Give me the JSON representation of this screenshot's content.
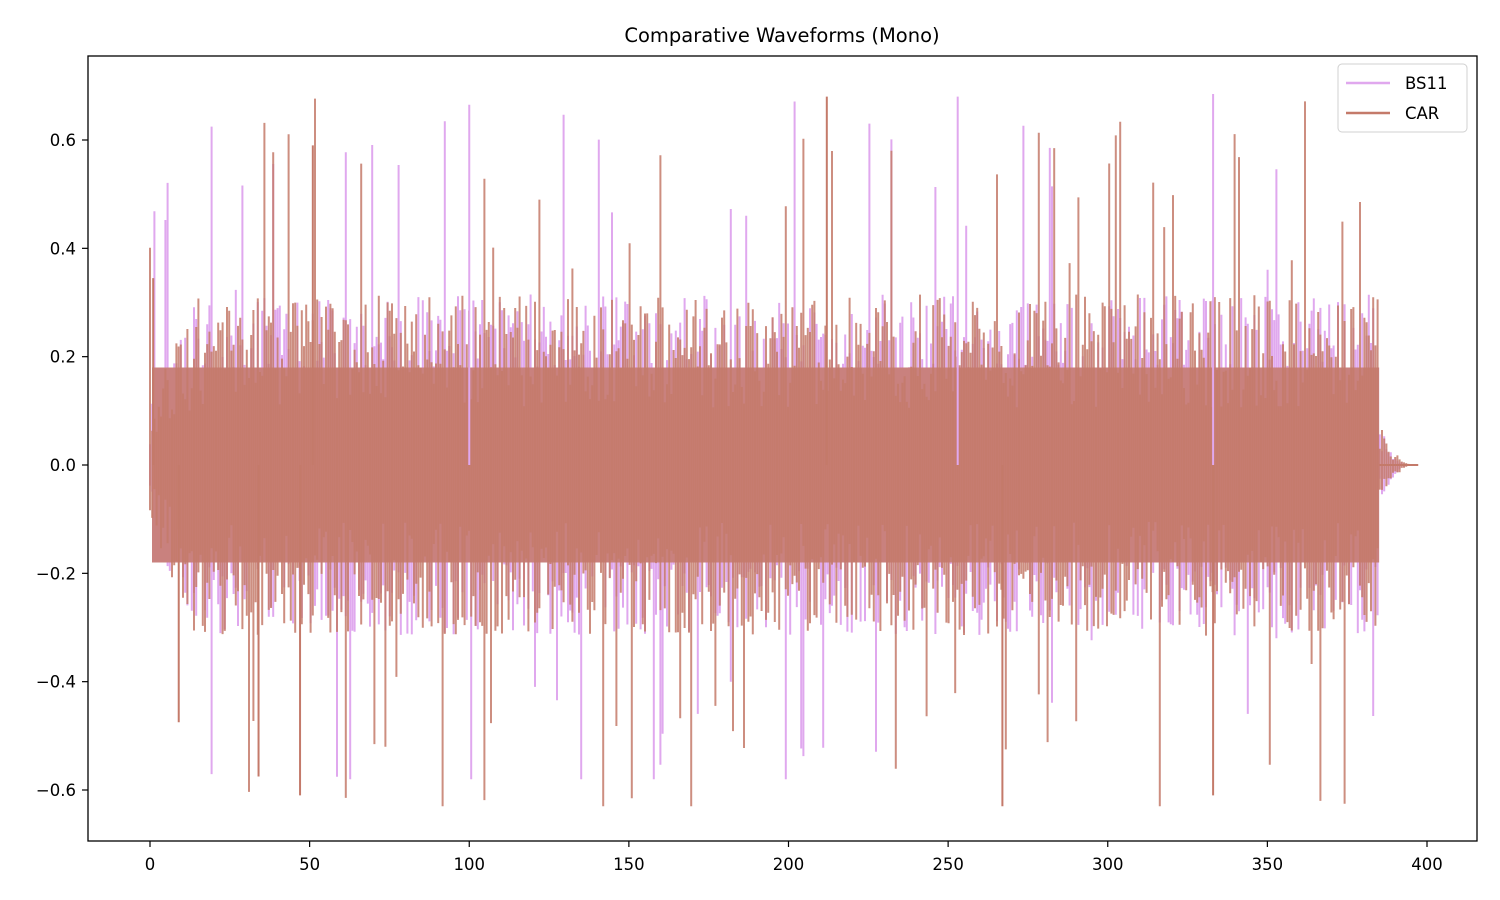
{
  "chart_data": {
    "type": "line",
    "title": "Comparative Waveforms (Mono)",
    "xlabel": "",
    "ylabel": "",
    "xlim": [
      -19.5,
      415.5
    ],
    "ylim": [
      -0.695,
      0.755
    ],
    "xticks": [
      0,
      50,
      100,
      150,
      200,
      250,
      300,
      350,
      400
    ],
    "xtick_labels": [
      "0",
      "50",
      "100",
      "150",
      "200",
      "250",
      "300",
      "350",
      "400"
    ],
    "yticks": [
      -0.6,
      -0.4,
      -0.2,
      0.0,
      0.2,
      0.4,
      0.6
    ],
    "ytick_labels": [
      "−0.6",
      "−0.4",
      "−0.2",
      "0.0",
      "0.2",
      "0.4",
      "0.6"
    ],
    "grid": false,
    "legend_position": "upper right",
    "series": [
      {
        "name": "BS11",
        "color": "#e0a8ee",
        "alpha": 1.0,
        "duration": 395,
        "active_end": 385,
        "typical_amplitude": 0.3,
        "peak_max": 0.69,
        "peak_min": -0.58,
        "description": "dense audio waveform, amplitude envelope ~±0.3 with peaks to ~0.69, decays to 0 after ~386"
      },
      {
        "name": "CAR",
        "color": "#c47a6a",
        "alpha": 0.85,
        "duration": 396,
        "active_end": 385,
        "typical_amplitude": 0.3,
        "peak_max": 0.68,
        "peak_min": -0.63,
        "description": "dense audio waveform overlapping BS11, combined fill appears #c0666a, peaks to ~0.68 / -0.63"
      }
    ],
    "overlap_color": "#c0666a",
    "notable_peaks": [
      {
        "series": "CAR",
        "x": 1,
        "y": 0.345
      },
      {
        "series": "CAR",
        "x": 9,
        "y": -0.475
      },
      {
        "series": "CAR",
        "x": 34,
        "y": -0.575
      },
      {
        "series": "CAR",
        "x": 47,
        "y": -0.61
      },
      {
        "series": "CAR",
        "x": 51,
        "y": 0.59
      },
      {
        "series": "BS11",
        "x": 100,
        "y": 0.665
      },
      {
        "series": "CAR",
        "x": 212,
        "y": 0.68
      },
      {
        "series": "BS11",
        "x": 253,
        "y": 0.68
      },
      {
        "series": "CAR",
        "x": 267,
        "y": -0.63
      },
      {
        "series": "BS11",
        "x": 333,
        "y": 0.685
      },
      {
        "series": "CAR",
        "x": 333,
        "y": -0.61
      }
    ]
  },
  "legend": {
    "items": [
      {
        "label": "BS11",
        "color": "#e0a8ee"
      },
      {
        "label": "CAR",
        "color": "#c47a6a"
      }
    ]
  }
}
